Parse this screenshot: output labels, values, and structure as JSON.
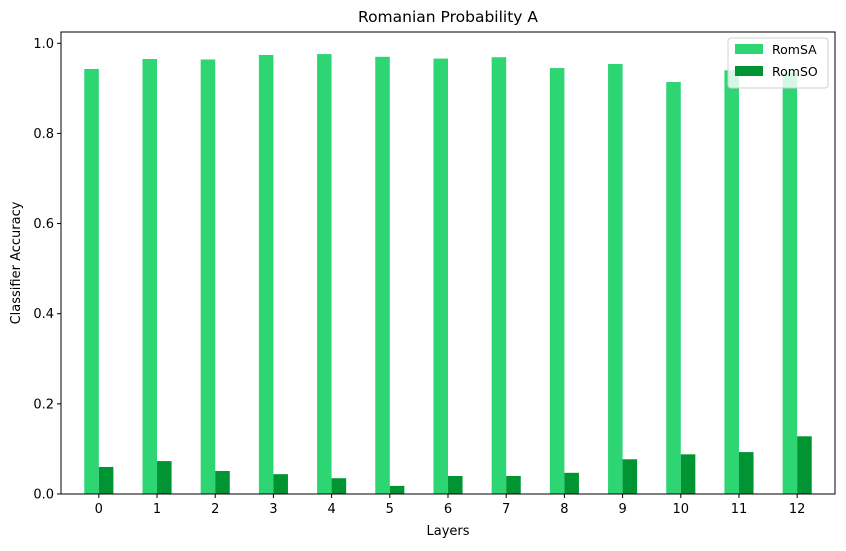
{
  "chart_data": {
    "type": "bar",
    "title": "Romanian Probability A",
    "xlabel": "Layers",
    "ylabel": "Classifier Accuracy",
    "categories": [
      "0",
      "1",
      "2",
      "3",
      "4",
      "5",
      "6",
      "7",
      "8",
      "9",
      "10",
      "11",
      "12"
    ],
    "series": [
      {
        "name": "RomSA",
        "color": "#2ed573",
        "values": [
          0.943,
          0.965,
          0.964,
          0.974,
          0.976,
          0.97,
          0.966,
          0.969,
          0.945,
          0.954,
          0.914,
          0.94,
          0.935
        ]
      },
      {
        "name": "RomSO",
        "color": "#009432",
        "values": [
          0.06,
          0.073,
          0.051,
          0.044,
          0.035,
          0.018,
          0.04,
          0.04,
          0.047,
          0.077,
          0.088,
          0.093,
          0.128
        ]
      }
    ],
    "ylim": [
      0,
      1.025
    ],
    "yticks": [
      0.0,
      0.2,
      0.4,
      0.6,
      0.8,
      1.0
    ],
    "ytick_labels": [
      "0.0",
      "0.2",
      "0.4",
      "0.6",
      "0.8",
      "1.0"
    ],
    "grid": false,
    "legend_position": "top-right"
  }
}
